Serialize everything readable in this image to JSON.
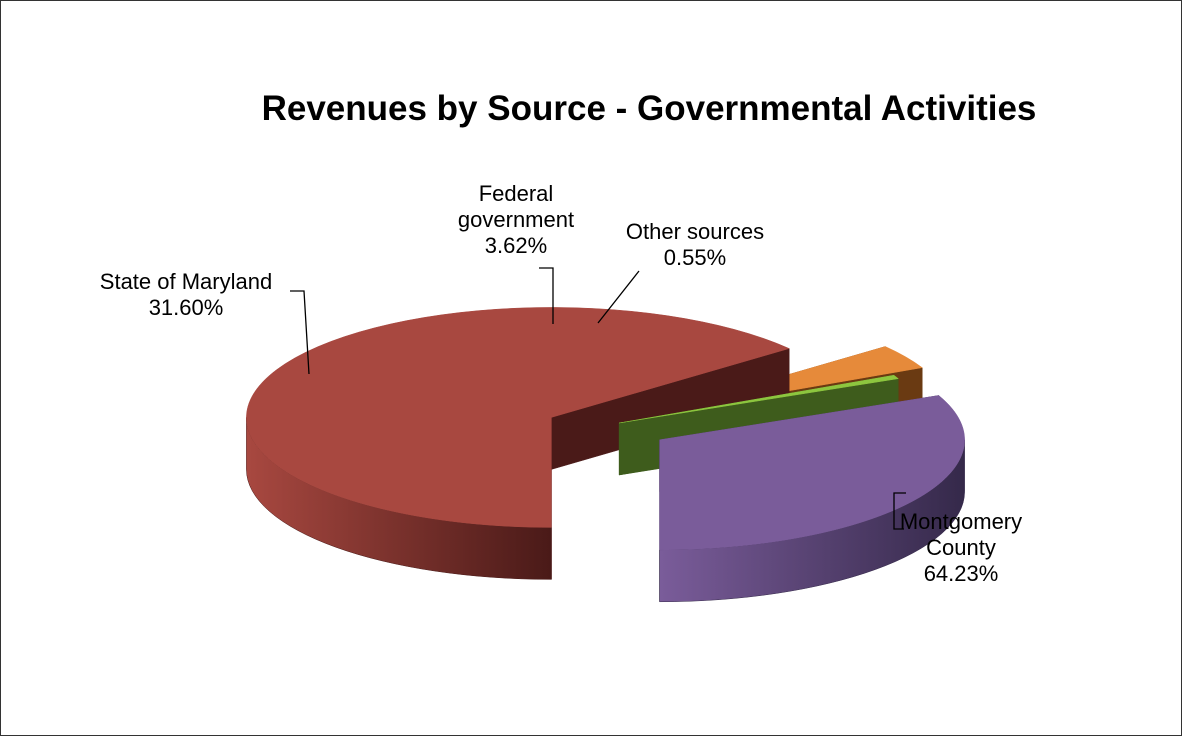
{
  "chart_data": {
    "type": "pie",
    "title": "Revenues by Source - Governmental Activities",
    "slices": [
      {
        "label_lines": [
          "Montgomery",
          "County"
        ],
        "value": 64.23,
        "value_label": "64.23%",
        "color": "#A84840",
        "color_dark": "#4A1A18"
      },
      {
        "label_lines": [
          "Federal",
          "government"
        ],
        "value": 3.62,
        "value_label": "3.62%",
        "color": "#E68A3A",
        "color_dark": "#6A3A12"
      },
      {
        "label_lines": [
          "Other sources"
        ],
        "value": 0.55,
        "value_label": "0.55%",
        "color": "#8DC63F",
        "color_dark": "#3E5C1C"
      },
      {
        "label_lines": [
          "State of Maryland"
        ],
        "value": 31.6,
        "value_label": "31.60%",
        "color": "#7A5C9A",
        "color_dark": "#35294A"
      }
    ],
    "style": "3d-exploded"
  }
}
